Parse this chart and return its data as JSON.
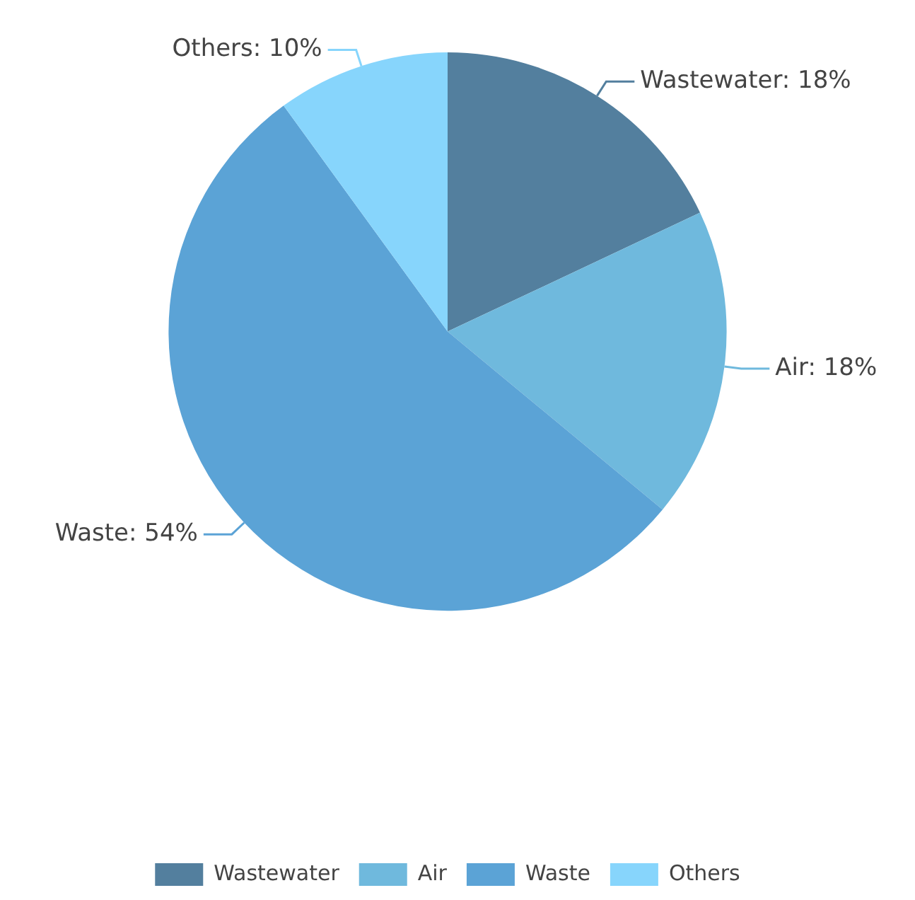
{
  "chart_data": {
    "type": "pie",
    "categories": [
      "Wastewater",
      "Air",
      "Waste",
      "Others"
    ],
    "values": [
      18,
      18,
      54,
      10
    ],
    "colors": [
      "#537f9e",
      "#6fb9dd",
      "#5ba3d6",
      "#87d5fc"
    ],
    "value_labels": [
      "Wastewater: 18%",
      "Air: 18%",
      "Waste: 54%",
      "Others: 10%"
    ],
    "legend": "bottom"
  }
}
